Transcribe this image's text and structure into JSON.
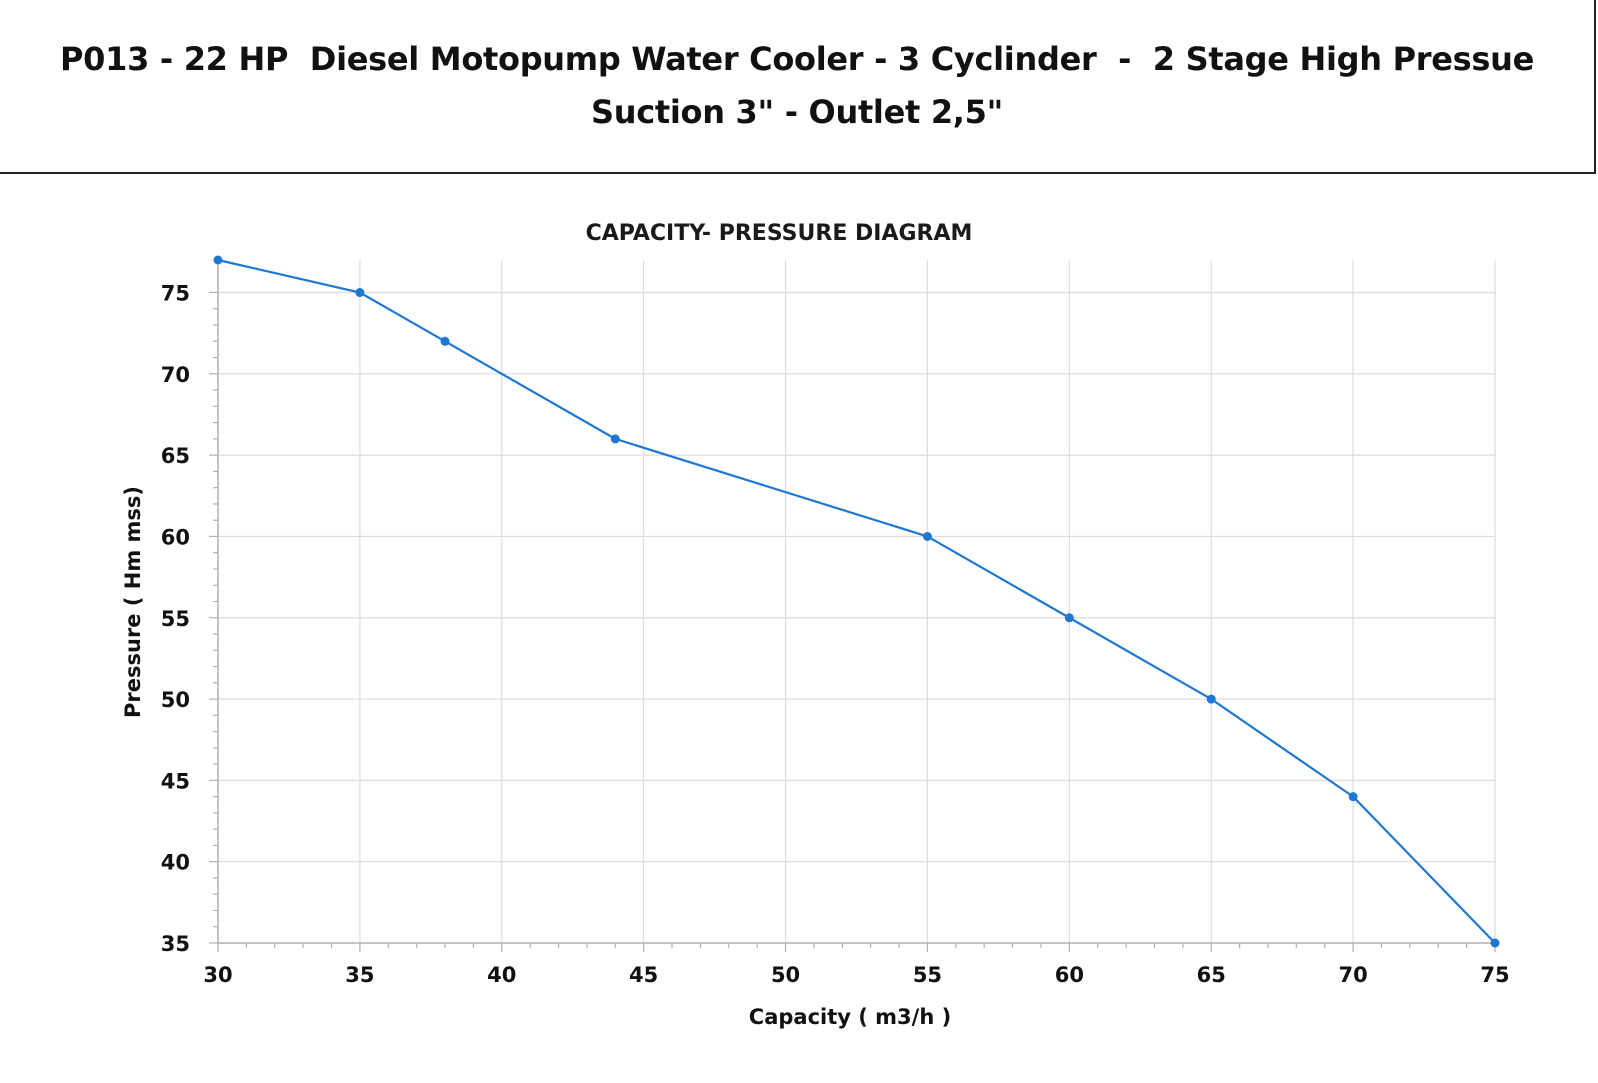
{
  "header": {
    "title_line1": "P013 - 22 HP  Diesel Motopump Water Cooler - 3 Cyclinder  -  2 Stage High Pressue",
    "title_line2": "Suction 3\" - Outlet 2,5\""
  },
  "chart_data": {
    "type": "line",
    "title": "CAPACITY- PRESSURE DIAGRAM",
    "xlabel": "Capacity ( m3/h )",
    "ylabel": "Pressure ( Hm mss)",
    "xlim": [
      30,
      75
    ],
    "ylim": [
      35,
      77
    ],
    "xticks": [
      30,
      35,
      40,
      45,
      50,
      55,
      60,
      65,
      70,
      75
    ],
    "yticks": [
      35,
      40,
      45,
      50,
      55,
      60,
      65,
      70,
      75
    ],
    "grid": true,
    "series": [
      {
        "x": [
          30,
          35,
          38,
          44,
          55,
          60,
          65,
          70,
          75
        ],
        "y": [
          77,
          75,
          72,
          66,
          60,
          55,
          50,
          44,
          35
        ],
        "color": "#1f77d4"
      }
    ]
  }
}
